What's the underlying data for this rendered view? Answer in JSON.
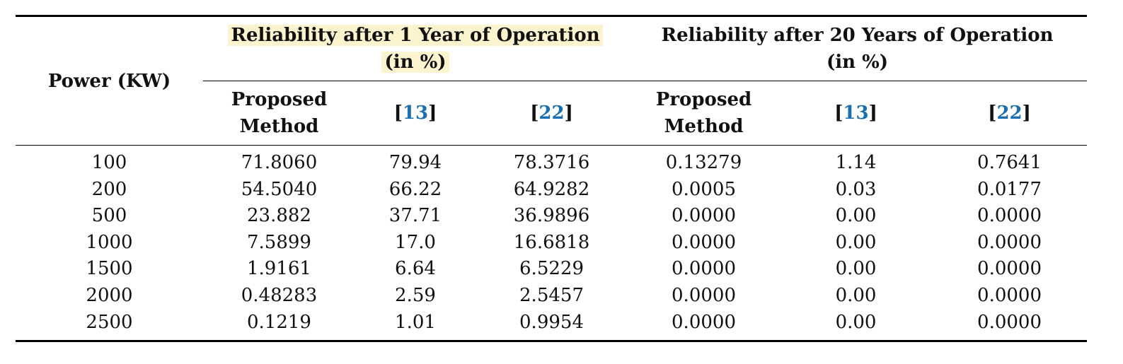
{
  "table": {
    "header": {
      "power": "Power (KW)",
      "group1": {
        "line1": "Reliability after 1 Year of Operation",
        "line2": "(in %)"
      },
      "group2": {
        "line1": "Reliability after 20 Years of Operation",
        "line2": "(in %)"
      },
      "subcolumns": [
        {
          "line1": "Proposed",
          "line2": "Method"
        },
        {
          "open": "[",
          "cite": "13",
          "close": "]"
        },
        {
          "open": "[",
          "cite": "22",
          "close": "]"
        },
        {
          "line1": "Proposed",
          "line2": "Method"
        },
        {
          "open": "[",
          "cite": "13",
          "close": "]"
        },
        {
          "open": "[",
          "cite": "22",
          "close": "]"
        }
      ]
    },
    "rows": [
      [
        "100",
        "71.8060",
        "79.94",
        "78.3716",
        "0.13279",
        "1.14",
        "0.7641"
      ],
      [
        "200",
        "54.5040",
        "66.22",
        "64.9282",
        "0.0005",
        "0.03",
        "0.0177"
      ],
      [
        "500",
        "23.882",
        "37.71",
        "36.9896",
        "0.0000",
        "0.00",
        "0.0000"
      ],
      [
        "1000",
        "7.5899",
        "17.0",
        "16.6818",
        "0.0000",
        "0.00",
        "0.0000"
      ],
      [
        "1500",
        "1.9161",
        "6.64",
        "6.5229",
        "0.0000",
        "0.00",
        "0.0000"
      ],
      [
        "2000",
        "0.48283",
        "2.59",
        "2.5457",
        "0.0000",
        "0.00",
        "0.0000"
      ],
      [
        "2500",
        "0.1219",
        "1.01",
        "0.9954",
        "0.0000",
        "0.00",
        "0.0000"
      ]
    ],
    "colors": {
      "citation": "#1a6fb0",
      "highlight": "#fcf3cf",
      "rule": "#000000"
    }
  }
}
